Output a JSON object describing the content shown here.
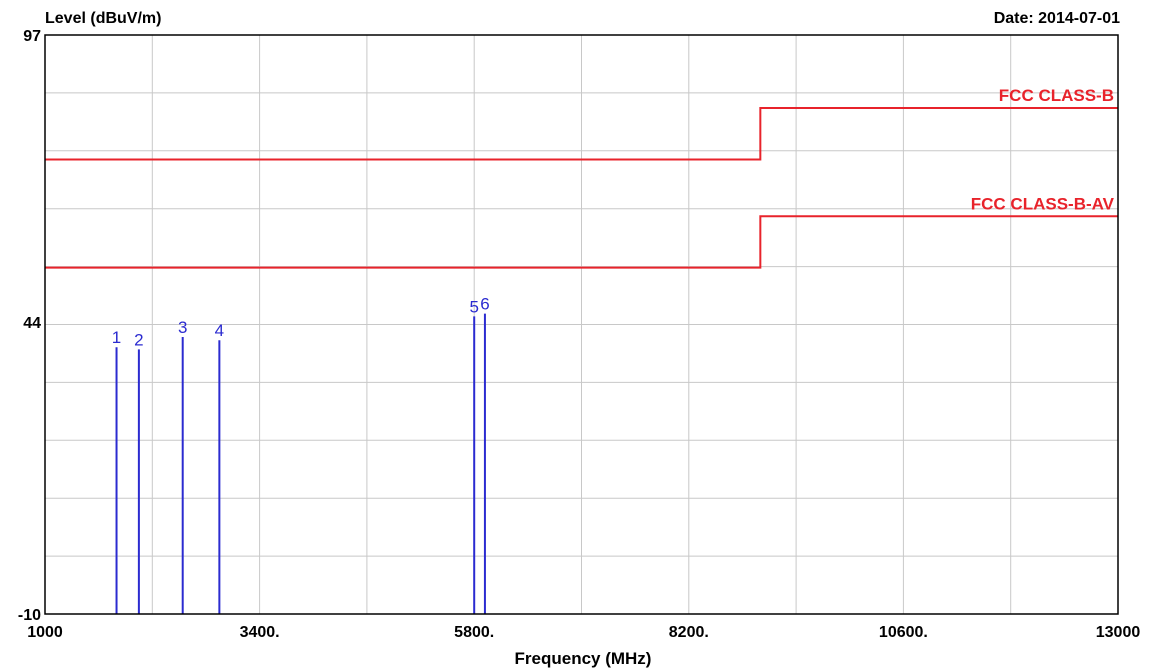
{
  "chart_data": {
    "type": "line",
    "ylabel": "Level (dBuV/m)",
    "xlabel": "Frequency (MHz)",
    "date_label": "Date: 2014-07-01",
    "xlim": [
      1000,
      13000
    ],
    "ylim": [
      -10,
      97
    ],
    "x_ticks": [
      {
        "value": 1000,
        "label": "1000"
      },
      {
        "value": 3400,
        "label": "3400."
      },
      {
        "value": 5800,
        "label": "5800."
      },
      {
        "value": 8200,
        "label": "8200."
      },
      {
        "value": 10600,
        "label": "10600."
      },
      {
        "value": 13000,
        "label": "13000"
      }
    ],
    "y_ticks": [
      {
        "value": 97,
        "label": "97"
      },
      {
        "value": 44,
        "label": "44"
      },
      {
        "value": -10,
        "label": "-10"
      }
    ],
    "grid": true,
    "grid_x_step": 1200,
    "grid_y_values": [
      97,
      86.3,
      75.6,
      64.9,
      54.2,
      43.5,
      32.8,
      22.1,
      11.4,
      0.7,
      -10
    ],
    "limit_lines": [
      {
        "name": "FCC CLASS-B",
        "color": "#e8232b",
        "points": [
          [
            1000,
            74
          ],
          [
            9000,
            74
          ],
          [
            9000,
            83.5
          ],
          [
            13000,
            83.5
          ]
        ]
      },
      {
        "name": "FCC CLASS-B-AV",
        "color": "#e8232b",
        "points": [
          [
            1000,
            54
          ],
          [
            9000,
            54
          ],
          [
            9000,
            63.5
          ],
          [
            13000,
            63.5
          ]
        ]
      }
    ],
    "peaks_color": "#2b2bd0",
    "peaks": [
      {
        "label": "1",
        "x": 1800,
        "y": 39.3
      },
      {
        "label": "2",
        "x": 2050,
        "y": 38.9
      },
      {
        "label": "3",
        "x": 2540,
        "y": 41.2
      },
      {
        "label": "4",
        "x": 2950,
        "y": 40.6
      },
      {
        "label": "5",
        "x": 5800,
        "y": 45.0
      },
      {
        "label": "6",
        "x": 5920,
        "y": 45.5
      }
    ]
  }
}
